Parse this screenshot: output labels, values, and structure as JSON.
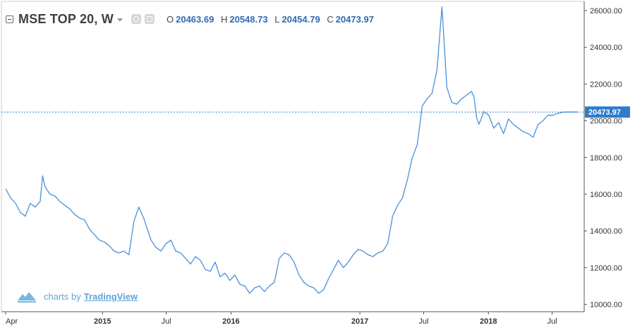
{
  "legend": {
    "symbol": "MSE TOP 20, W",
    "o_label": "O",
    "o_value": "20463.69",
    "h_label": "H",
    "h_value": "20548.73",
    "l_label": "L",
    "l_value": "20454.79",
    "c_label": "C",
    "c_value": "20473.97"
  },
  "watermark": {
    "prefix": "charts by",
    "brand": "TradingView"
  },
  "price_label": "20473.97",
  "colors": {
    "line": "#4a90d9",
    "label_bg": "#2f7bcc",
    "text": "#333333",
    "grid": "#e4e4e4",
    "watermark": "#5fa4d8"
  },
  "chart_data": {
    "type": "line",
    "title": "",
    "xlabel": "",
    "ylabel": "",
    "ylim": [
      9600,
      26500
    ],
    "x_range": [
      "2014-04-01",
      "2018-09-30"
    ],
    "grid": "off",
    "y_ticks": [
      "10000.00",
      "12000.00",
      "14000.00",
      "16000.00",
      "18000.00",
      "20000.00",
      "22000.00",
      "24000.00",
      "26000.00"
    ],
    "y_tick_values": [
      10000,
      12000,
      14000,
      16000,
      18000,
      20000,
      22000,
      24000,
      26000
    ],
    "x_ticks": [
      {
        "label": "Apr",
        "date": "2014-04-01",
        "bold": false
      },
      {
        "label": "2015",
        "date": "2015-01-01",
        "bold": true
      },
      {
        "label": "Jul",
        "date": "2015-07-01",
        "bold": false
      },
      {
        "label": "2016",
        "date": "2016-01-01",
        "bold": true
      },
      {
        "label": "2017",
        "date": "2017-01-01",
        "bold": true
      },
      {
        "label": "Jul",
        "date": "2017-07-01",
        "bold": false
      },
      {
        "label": "2018",
        "date": "2018-01-01",
        "bold": true
      },
      {
        "label": "Jul",
        "date": "2018-07-01",
        "bold": false
      }
    ],
    "last_value": 20473.97,
    "series": [
      {
        "x": [
          "2014-04-01",
          "2014-04-15",
          "2014-04-29",
          "2014-05-13",
          "2014-05-27",
          "2014-06-10",
          "2014-06-24",
          "2014-07-08",
          "2014-07-15",
          "2014-07-22",
          "2014-08-05",
          "2014-08-19",
          "2014-09-02",
          "2014-09-16",
          "2014-09-30",
          "2014-10-14",
          "2014-10-28",
          "2014-11-11",
          "2014-11-25",
          "2014-12-09",
          "2014-12-23",
          "2015-01-06",
          "2015-01-20",
          "2015-02-03",
          "2015-02-17",
          "2015-03-03",
          "2015-03-17",
          "2015-03-31",
          "2015-04-14",
          "2015-04-28",
          "2015-05-12",
          "2015-05-19",
          "2015-06-02",
          "2015-06-16",
          "2015-06-30",
          "2015-07-14",
          "2015-07-28",
          "2015-08-11",
          "2015-08-25",
          "2015-09-08",
          "2015-09-22",
          "2015-10-06",
          "2015-10-20",
          "2015-11-03",
          "2015-11-17",
          "2015-12-01",
          "2015-12-15",
          "2015-12-29",
          "2016-01-12",
          "2016-01-26",
          "2016-02-09",
          "2016-02-23",
          "2016-03-08",
          "2016-03-22",
          "2016-04-05",
          "2016-04-19",
          "2016-05-03",
          "2016-05-17",
          "2016-05-31",
          "2016-06-14",
          "2016-06-28",
          "2016-07-12",
          "2016-07-26",
          "2016-08-09",
          "2016-08-23",
          "2016-09-06",
          "2016-09-20",
          "2016-10-04",
          "2016-10-18",
          "2016-11-01",
          "2016-11-15",
          "2016-11-29",
          "2016-12-13",
          "2016-12-27",
          "2017-01-10",
          "2017-01-24",
          "2017-02-07",
          "2017-02-21",
          "2017-03-07",
          "2017-03-21",
          "2017-04-04",
          "2017-04-18",
          "2017-05-02",
          "2017-05-16",
          "2017-05-30",
          "2017-06-13",
          "2017-06-27",
          "2017-07-11",
          "2017-07-25",
          "2017-08-08",
          "2017-08-22",
          "2017-09-05",
          "2017-09-19",
          "2017-10-03",
          "2017-10-17",
          "2017-10-31",
          "2017-11-14",
          "2017-11-21",
          "2017-11-28",
          "2017-12-05",
          "2017-12-19",
          "2018-01-02",
          "2018-01-16",
          "2018-01-30",
          "2018-02-13",
          "2018-02-27",
          "2018-03-13",
          "2018-03-27",
          "2018-04-10",
          "2018-04-24",
          "2018-05-08",
          "2018-05-22",
          "2018-06-05",
          "2018-06-19",
          "2018-07-03",
          "2018-07-17",
          "2018-07-31",
          "2018-08-14",
          "2018-08-28",
          "2018-09-11"
        ],
        "y": [
          16300,
          15800,
          15500,
          15000,
          14800,
          15500,
          15300,
          15600,
          17000,
          16400,
          16000,
          15900,
          15600,
          15400,
          15200,
          14900,
          14700,
          14600,
          14100,
          13800,
          13500,
          13400,
          13200,
          12900,
          12800,
          12900,
          12700,
          14500,
          15300,
          14700,
          13900,
          13500,
          13100,
          12900,
          13300,
          13500,
          12900,
          12800,
          12500,
          12200,
          12600,
          12400,
          11900,
          11800,
          12300,
          11500,
          11700,
          11300,
          11600,
          11100,
          11000,
          10600,
          10900,
          11000,
          10700,
          11000,
          11200,
          12500,
          12800,
          12700,
          12300,
          11600,
          11200,
          11000,
          10900,
          10600,
          10800,
          11400,
          11900,
          12400,
          12000,
          12300,
          12700,
          13000,
          12900,
          12700,
          12600,
          12800,
          12900,
          13300,
          14800,
          15400,
          15800,
          16800,
          18000,
          18700,
          20800,
          21200,
          21500,
          22800,
          26200,
          21800,
          21000,
          20900,
          21200,
          21400,
          21600,
          21300,
          20200,
          19800,
          20500,
          20300,
          19600,
          19900,
          19300,
          20100,
          19800,
          19600,
          19400,
          19300,
          19100,
          19800,
          20000,
          20300,
          20300,
          20400,
          20470,
          20473.97,
          20473.97,
          20473.97
        ]
      }
    ]
  }
}
